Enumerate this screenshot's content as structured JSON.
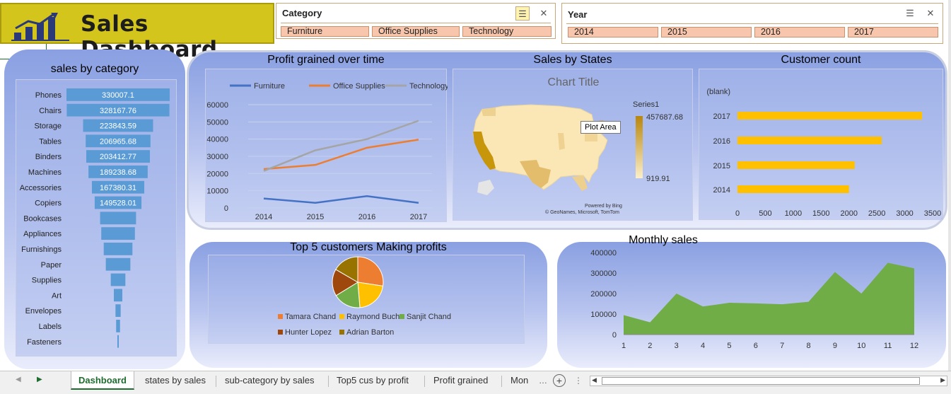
{
  "header": {
    "title": "Sales Dashboard"
  },
  "slicers": {
    "category": {
      "label": "Category",
      "items": [
        "Furniture",
        "Office Supplies",
        "Technology"
      ]
    },
    "year": {
      "label": "Year",
      "items": [
        "2014",
        "2015",
        "2016",
        "2017"
      ]
    }
  },
  "panels": {
    "sales_by_category": "sales by category",
    "profit_over_time": "Profit grained over time",
    "sales_by_states": "Sales by States",
    "customer_count": "Customer count",
    "top5": "Top 5 customers Making  profits",
    "monthly": "Monthly sales"
  },
  "map": {
    "chart_title": "Chart Title",
    "legend_title": "Series1",
    "legend_max": "457687.68",
    "legend_min": "919.91",
    "tooltip": "Plot Area",
    "powered": "Powered by Bing",
    "credit": "© GeoNames, Microsoft, TomTom"
  },
  "tabs": [
    {
      "label": "Dashboard",
      "active": true
    },
    {
      "label": "states by sales"
    },
    {
      "label": "sub-category by sales"
    },
    {
      "label": "Top5 cus by profit"
    },
    {
      "label": "Profit grained"
    },
    {
      "label": "Mon"
    }
  ],
  "colors": {
    "accent": "#d4c51c",
    "bar": "#5b9bd5",
    "gold": "#ffc000",
    "area": "#70ad47"
  },
  "chart_data": [
    {
      "type": "bar",
      "title": "sales by category",
      "orientation": "horizontal",
      "categories": [
        "Phones",
        "Chairs",
        "Storage",
        "Tables",
        "Binders",
        "Machines",
        "Accessories",
        "Copiers",
        "Bookcases",
        "Appliances",
        "Furnishings",
        "Paper",
        "Supplies",
        "Art",
        "Envelopes",
        "Labels",
        "Fasteners"
      ],
      "values": [
        330007.1,
        328167.76,
        223843.59,
        206965.68,
        203412.77,
        189238.68,
        167380.31,
        149528.01,
        114880,
        107532,
        91705,
        78479,
        46674,
        27119,
        16476,
        12486,
        3024
      ],
      "data_labels": [
        "330007.1",
        "328167.76",
        "223843.59",
        "206965.68",
        "203412.77",
        "189238.68",
        "167380.31",
        "149528.01",
        "",
        "",
        "",
        "",
        "",
        "",
        "",
        "",
        ""
      ]
    },
    {
      "type": "line",
      "title": "Profit grained over time",
      "x": [
        "2014",
        "2015",
        "2016",
        "2017"
      ],
      "ylim": [
        0,
        60000
      ],
      "yticks": [
        "0",
        "10000",
        "20000",
        "30000",
        "40000",
        "50000",
        "60000"
      ],
      "series": [
        {
          "name": "Furniture",
          "color": "#4472c4",
          "values": [
            5500,
            3000,
            6900,
            3000
          ]
        },
        {
          "name": "Office Supplies",
          "color": "#ed7d31",
          "values": [
            22600,
            25000,
            35000,
            39700
          ]
        },
        {
          "name": "Technology",
          "color": "#a5a5a5",
          "values": [
            21500,
            33500,
            40000,
            50700
          ]
        }
      ]
    },
    {
      "type": "bar",
      "title": "Customer count",
      "orientation": "horizontal",
      "categories": [
        "(blank)",
        "2017",
        "2016",
        "2015",
        "2014"
      ],
      "values": [
        0,
        3312,
        2587,
        2102,
        2000
      ],
      "xlim": [
        0,
        3500
      ],
      "xticks": [
        "0",
        "500",
        "1000",
        "1500",
        "2000",
        "2500",
        "3000",
        "3500"
      ]
    },
    {
      "type": "pie",
      "title": "Top 5 customers Making  profits",
      "series": [
        {
          "name": "Tamara Chand",
          "color": "#ed7d31",
          "value": 8981
        },
        {
          "name": "Raymond Buch",
          "color": "#ffc000",
          "value": 6976
        },
        {
          "name": "Sanjit Chand",
          "color": "#70ad47",
          "value": 5757
        },
        {
          "name": "Hunter Lopez",
          "color": "#9e480e",
          "value": 5622
        },
        {
          "name": "Adrian Barton",
          "color": "#997300",
          "value": 5444
        }
      ]
    },
    {
      "type": "area",
      "title": "Monthly sales",
      "x": [
        "1",
        "2",
        "3",
        "4",
        "5",
        "6",
        "7",
        "8",
        "9",
        "10",
        "11",
        "12"
      ],
      "values": [
        95000,
        60000,
        200000,
        137000,
        155000,
        152000,
        148000,
        160000,
        305000,
        200000,
        350000,
        323000
      ],
      "ylim": [
        0,
        400000
      ],
      "yticks": [
        "0",
        "100000",
        "200000",
        "300000",
        "400000"
      ]
    }
  ]
}
